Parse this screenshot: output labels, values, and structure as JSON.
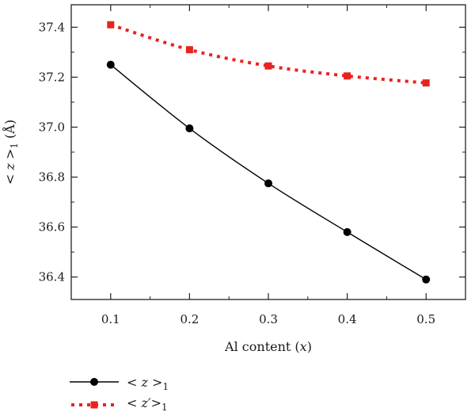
{
  "chart_data": {
    "type": "line",
    "title": "",
    "xlabel": {
      "prefix": "Al content (",
      "var": "x",
      "suffix": ")"
    },
    "ylabel": {
      "prefix": "< ",
      "var": "z",
      "mid": " >",
      "sub": "1",
      "unit": " (Å)"
    },
    "xlim": [
      0.05,
      0.55
    ],
    "ylim": [
      36.31,
      37.49
    ],
    "xticks": [
      0.1,
      0.2,
      0.3,
      0.4,
      0.5
    ],
    "yticks": [
      36.4,
      36.6,
      36.8,
      37.0,
      37.2,
      37.4
    ],
    "xtick_labels": [
      "0.1",
      "0.2",
      "0.3",
      "0.4",
      "0.5"
    ],
    "ytick_labels": [
      "36.4",
      "36.6",
      "36.8",
      "37.0",
      "37.2",
      "37.4"
    ],
    "grid": false,
    "legend_position": "bottom-left-outside",
    "series": [
      {
        "key": "z",
        "x": [
          0.1,
          0.2,
          0.3,
          0.4,
          0.5
        ],
        "y": [
          37.25,
          36.995,
          36.775,
          36.58,
          36.39
        ],
        "color": "#000000",
        "line": "solid",
        "marker": "circle",
        "legend": {
          "prefix": "< ",
          "var": "z",
          "mid": " >",
          "sub": "1"
        }
      },
      {
        "key": "zprime",
        "x": [
          0.1,
          0.2,
          0.3,
          0.4,
          0.5
        ],
        "y": [
          37.41,
          37.31,
          37.245,
          37.205,
          37.177
        ],
        "color": "#e8231f",
        "line": "dotted",
        "marker": "square",
        "legend": {
          "prefix": "< ",
          "var": "z′",
          "mid": ">",
          "sub": "1"
        }
      }
    ]
  }
}
